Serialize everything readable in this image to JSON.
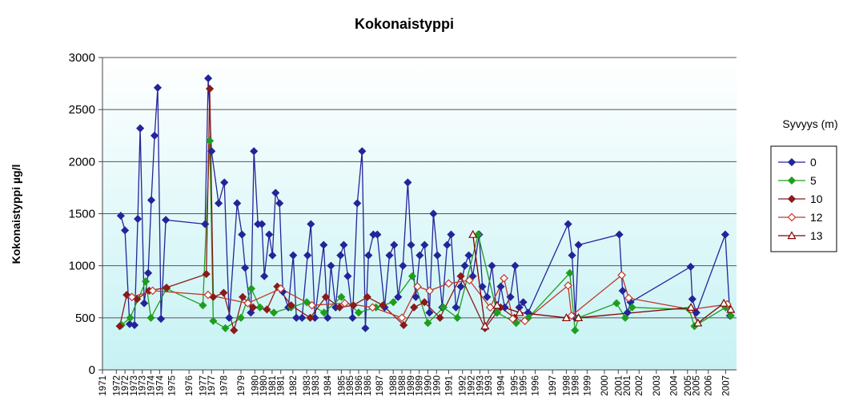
{
  "chart_data": {
    "type": "line",
    "title": "Kokonaistyppi",
    "y_label": "Kokonaistyppi µg/l",
    "legend_title": "Syvyys (m)",
    "legend": "right",
    "grid": true,
    "ylim": [
      0,
      3000
    ],
    "yticks": [
      0,
      500,
      1000,
      1500,
      2000,
      2500,
      3000
    ],
    "xlim": [
      1971.5,
      2007.9
    ],
    "xticks": [
      {
        "value": 1971.5,
        "label": "1971"
      },
      {
        "value": 1972.3,
        "label": "1972"
      },
      {
        "value": 1972.8,
        "label": "1972"
      },
      {
        "value": 1973.3,
        "label": "1973"
      },
      {
        "value": 1973.8,
        "label": "1973"
      },
      {
        "value": 1974.3,
        "label": "1974"
      },
      {
        "value": 1974.8,
        "label": "1974"
      },
      {
        "value": 1975.5,
        "label": "1975"
      },
      {
        "value": 1976.5,
        "label": "1976"
      },
      {
        "value": 1977.3,
        "label": "1977"
      },
      {
        "value": 1977.8,
        "label": "1977"
      },
      {
        "value": 1978.5,
        "label": "1978"
      },
      {
        "value": 1979.5,
        "label": "1979"
      },
      {
        "value": 1980.3,
        "label": "1980"
      },
      {
        "value": 1980.8,
        "label": "1980"
      },
      {
        "value": 1981.3,
        "label": "1981"
      },
      {
        "value": 1981.8,
        "label": "1981"
      },
      {
        "value": 1982.5,
        "label": "1982"
      },
      {
        "value": 1983.3,
        "label": "1983"
      },
      {
        "value": 1983.8,
        "label": "1983"
      },
      {
        "value": 1984.5,
        "label": "1984"
      },
      {
        "value": 1985.3,
        "label": "1985"
      },
      {
        "value": 1985.8,
        "label": "1985"
      },
      {
        "value": 1986.3,
        "label": "1986"
      },
      {
        "value": 1986.8,
        "label": "1986"
      },
      {
        "value": 1987.5,
        "label": "1987"
      },
      {
        "value": 1988.3,
        "label": "1988"
      },
      {
        "value": 1988.8,
        "label": "1988"
      },
      {
        "value": 1989.3,
        "label": "1989"
      },
      {
        "value": 1989.8,
        "label": "1989"
      },
      {
        "value": 1990.3,
        "label": "1990"
      },
      {
        "value": 1990.8,
        "label": "1990"
      },
      {
        "value": 1991.5,
        "label": "1991"
      },
      {
        "value": 1992.3,
        "label": "1992"
      },
      {
        "value": 1992.8,
        "label": "1992"
      },
      {
        "value": 1993.3,
        "label": "1993"
      },
      {
        "value": 1993.8,
        "label": "1993"
      },
      {
        "value": 1994.5,
        "label": "1994"
      },
      {
        "value": 1995.3,
        "label": "1995"
      },
      {
        "value": 1995.8,
        "label": "1995"
      },
      {
        "value": 1996.5,
        "label": "1996"
      },
      {
        "value": 1997.5,
        "label": "1997"
      },
      {
        "value": 1998.3,
        "label": "1998"
      },
      {
        "value": 1998.8,
        "label": "1998"
      },
      {
        "value": 1999.5,
        "label": "1999"
      },
      {
        "value": 2000.5,
        "label": "2000"
      },
      {
        "value": 2001.3,
        "label": "2001"
      },
      {
        "value": 2001.8,
        "label": "2001"
      },
      {
        "value": 2002.5,
        "label": "2002"
      },
      {
        "value": 2003.5,
        "label": "2003"
      },
      {
        "value": 2004.5,
        "label": "2004"
      },
      {
        "value": 2005.3,
        "label": "2005"
      },
      {
        "value": 2005.8,
        "label": "2005"
      },
      {
        "value": 2006.5,
        "label": "2006"
      },
      {
        "value": 2007.5,
        "label": "2007"
      }
    ],
    "series": [
      {
        "name": "0",
        "color": "#24249a",
        "marker": "diamond",
        "x": [
          1972.56,
          1972.8,
          1973.07,
          1973.35,
          1973.54,
          1973.68,
          1973.91,
          1974.14,
          1974.32,
          1974.51,
          1974.69,
          1974.88,
          1975.16,
          1977.43,
          1977.61,
          1977.8,
          1978.21,
          1978.54,
          1978.82,
          1979.28,
          1979.56,
          1979.74,
          1980.07,
          1980.25,
          1980.48,
          1980.71,
          1980.85,
          1981.13,
          1981.32,
          1981.5,
          1981.73,
          1981.92,
          1982.24,
          1982.52,
          1982.7,
          1983.03,
          1983.35,
          1983.54,
          1983.77,
          1984.28,
          1984.51,
          1984.7,
          1984.97,
          1985.25,
          1985.44,
          1985.67,
          1985.95,
          1986.22,
          1986.5,
          1986.69,
          1986.87,
          1987.15,
          1987.38,
          1987.8,
          1988.08,
          1988.35,
          1988.58,
          1988.86,
          1989.14,
          1989.33,
          1989.6,
          1989.83,
          1990.11,
          1990.39,
          1990.62,
          1990.85,
          1991.13,
          1991.41,
          1991.64,
          1991.92,
          1992.2,
          1992.43,
          1992.66,
          1992.89,
          1993.26,
          1993.45,
          1993.72,
          1994.0,
          1994.28,
          1994.51,
          1994.74,
          1995.07,
          1995.34,
          1995.58,
          1995.81,
          1996.09,
          1998.4,
          1998.63,
          1998.82,
          1999.0,
          2001.36,
          2001.55,
          2001.83,
          2002.01,
          2005.48,
          2005.58,
          2005.81,
          2007.48,
          2007.75
        ],
        "values": [
          1480,
          1340,
          440,
          430,
          1450,
          2320,
          640,
          930,
          1630,
          2250,
          2710,
          490,
          1440,
          1400,
          2800,
          2100,
          1600,
          1800,
          500,
          1600,
          1300,
          980,
          550,
          2100,
          1400,
          1400,
          900,
          1300,
          1100,
          1700,
          1600,
          750,
          600,
          1100,
          500,
          500,
          1100,
          1400,
          500,
          1200,
          500,
          1000,
          600,
          1100,
          1200,
          900,
          500,
          1600,
          2100,
          400,
          1100,
          1300,
          1300,
          600,
          1100,
          1200,
          700,
          1000,
          1800,
          1200,
          700,
          1100,
          1200,
          550,
          1500,
          1100,
          600,
          1200,
          1300,
          600,
          800,
          1000,
          1100,
          900,
          1300,
          800,
          700,
          1000,
          550,
          800,
          600,
          700,
          1000,
          600,
          650,
          550,
          1400,
          1100,
          500,
          1200,
          1300,
          760,
          550,
          650,
          990,
          680,
          550,
          1300,
          520
        ]
      },
      {
        "name": "5",
        "color": "#1e9e1e",
        "marker": "diamond",
        "x": [
          1972.6,
          1973.1,
          1974.0,
          1974.3,
          1975.2,
          1977.3,
          1977.7,
          1977.9,
          1978.6,
          1979.5,
          1980.1,
          1980.6,
          1981.4,
          1982.4,
          1983.3,
          1984.3,
          1985.3,
          1986.3,
          1987.3,
          1988.3,
          1989.4,
          1990.3,
          1991.2,
          1992.0,
          1993.2,
          1994.3,
          1995.4,
          1996.1,
          1998.5,
          1998.8,
          1999.0,
          2001.2,
          2001.7,
          2002.1,
          2005.4,
          2005.7,
          2007.5,
          2007.8
        ],
        "values": [
          430,
          500,
          850,
          500,
          780,
          620,
          2200,
          470,
          400,
          500,
          780,
          600,
          550,
          600,
          650,
          550,
          700,
          550,
          600,
          650,
          900,
          450,
          600,
          500,
          1300,
          550,
          450,
          500,
          930,
          380,
          500,
          640,
          500,
          600,
          580,
          420,
          600,
          520
        ]
      },
      {
        "name": "10",
        "color": "#8b1a1a",
        "marker": "diamond",
        "x": [
          1972.5,
          1972.9,
          1973.5,
          1974.2,
          1975.2,
          1977.5,
          1977.7,
          1977.9,
          1978.5,
          1979.1,
          1979.6,
          1980.2,
          1981.0,
          1981.6,
          1982.4,
          1983.5,
          1984.4,
          1985.2,
          1986.0,
          1986.8,
          1987.7,
          1988.9,
          1989.5,
          1990.1,
          1991.0,
          1992.2,
          1993.6,
          1994.5,
          1995.3
        ],
        "values": [
          420,
          720,
          680,
          760,
          790,
          920,
          2700,
          700,
          740,
          380,
          700,
          600,
          580,
          800,
          620,
          500,
          700,
          600,
          620,
          700,
          620,
          430,
          600,
          650,
          500,
          900,
          400,
          600,
          500
        ]
      },
      {
        "name": "12",
        "color": "#c0392b",
        "marker": "diamond-open",
        "x": [
          1973.2,
          1974.4,
          1977.6,
          1979.9,
          1981.8,
          1983.6,
          1985.5,
          1987.1,
          1988.8,
          1989.7,
          1990.4,
          1991.5,
          1992.7,
          1993.9,
          1994.7,
          1995.2,
          1995.9,
          1998.4,
          1998.6,
          2001.5,
          2001.9,
          2005.5,
          2007.6
        ],
        "values": [
          700,
          760,
          720,
          640,
          780,
          620,
          640,
          600,
          500,
          800,
          760,
          830,
          860,
          600,
          880,
          490,
          470,
          810,
          520,
          910,
          690,
          580,
          630
        ]
      },
      {
        "name": "13",
        "color": "#800000",
        "marker": "triangle-open",
        "x": [
          1992.9,
          1993.6,
          1994.3,
          1995.6,
          1998.3,
          1999.0,
          2005.5,
          2005.9,
          2007.4,
          2007.8
        ],
        "values": [
          1300,
          420,
          620,
          550,
          500,
          500,
          600,
          450,
          640,
          580
        ]
      }
    ]
  }
}
